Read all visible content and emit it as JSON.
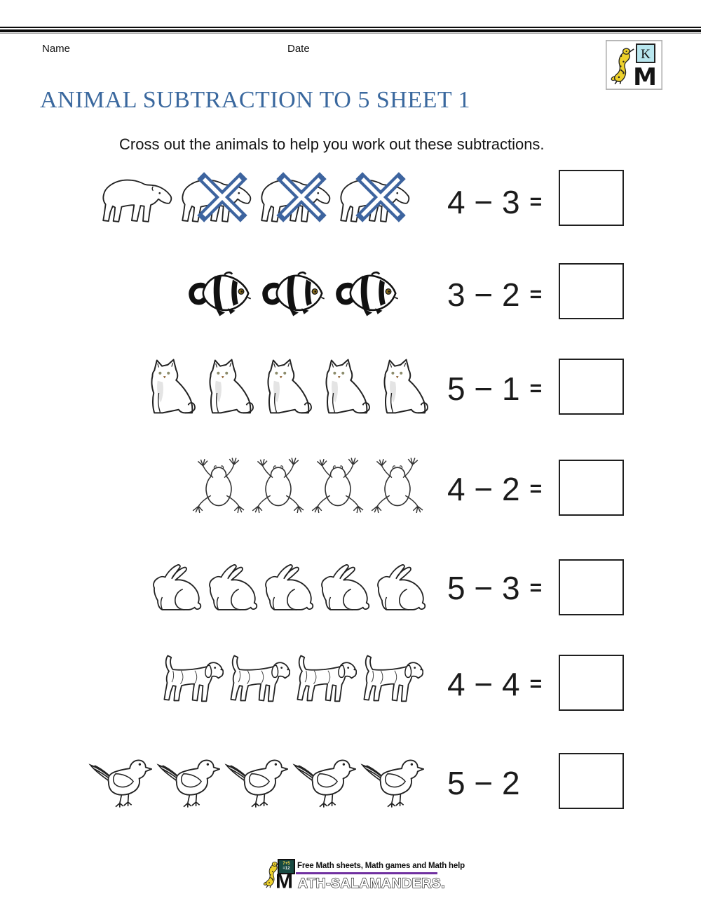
{
  "header": {
    "name_label": "Name",
    "date_label": "Date"
  },
  "brand": {
    "k_letter": "K",
    "m_letter": "M"
  },
  "title": "ANIMAL SUBTRACTION TO 5 SHEET 1",
  "instruction": "Cross out the animals to help you work out these subtractions.",
  "colors": {
    "title_blue": "#3a689e",
    "cross_blue": "#3d649f",
    "footer_underline_purple": "#7030a0",
    "logo_board_cyan": "#b8e6ee",
    "salamander_yellow": "#edd12b"
  },
  "problems": [
    {
      "animal": "polar-bear",
      "count": 4,
      "crossed_out": 3,
      "minuend": "4",
      "operator": "−",
      "subtrahend": "3",
      "equals_sign": "="
    },
    {
      "animal": "clownfish",
      "count": 3,
      "crossed_out": 0,
      "minuend": "3",
      "operator": "−",
      "subtrahend": "2",
      "equals_sign": "="
    },
    {
      "animal": "cat",
      "count": 5,
      "crossed_out": 0,
      "minuend": "5",
      "operator": "−",
      "subtrahend": "1",
      "equals_sign": "="
    },
    {
      "animal": "frog",
      "count": 4,
      "crossed_out": 0,
      "minuend": "4",
      "operator": "−",
      "subtrahend": "2",
      "equals_sign": "="
    },
    {
      "animal": "rabbit",
      "count": 5,
      "crossed_out": 0,
      "minuend": "5",
      "operator": "−",
      "subtrahend": "3",
      "equals_sign": "="
    },
    {
      "animal": "dog",
      "count": 4,
      "crossed_out": 0,
      "minuend": "4",
      "operator": "−",
      "subtrahend": "4",
      "equals_sign": "="
    },
    {
      "animal": "bird",
      "count": 5,
      "crossed_out": 0,
      "minuend": "5",
      "operator": "−",
      "subtrahend": "2",
      "equals_sign": ""
    }
  ],
  "footer": {
    "tagline": "Free Math sheets, Math games and Math help",
    "site_m": "M",
    "site_rest": "ATH-SALAMANDERS.COM",
    "chalkboard_line1": "7+5",
    "chalkboard_line2": "=12"
  }
}
